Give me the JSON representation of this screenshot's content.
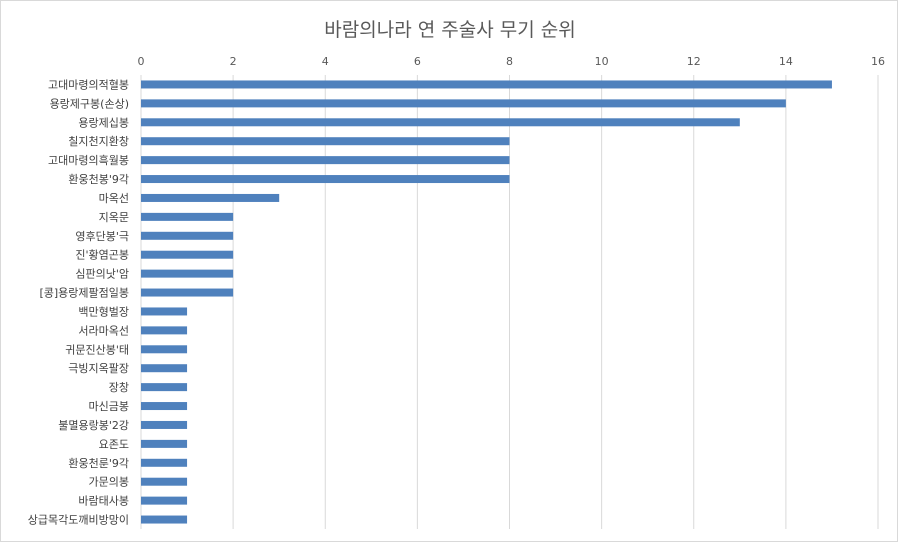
{
  "chart_data": {
    "type": "bar",
    "orientation": "horizontal",
    "title": "바람의나라 연 주술사 무기 순위",
    "xlabel": "",
    "ylabel": "",
    "xlim": [
      0,
      16
    ],
    "x_ticks": [
      "0",
      "2",
      "4",
      "6",
      "8",
      "10",
      "12",
      "14",
      "16"
    ],
    "x_axis_position": "top",
    "grid": true,
    "legend": "none",
    "bar_color": "#4f81bd",
    "categories": [
      "고대마령의적혈봉",
      "용랑제구봉(손상)",
      "용랑제십봉",
      "칠지천지환창",
      "고대마령의흑월봉",
      "환웅천봉'9각",
      "마옥선",
      "지옥문",
      "영후단봉'극",
      "진'황염곤봉",
      "심판의낫'암",
      "[콩]용랑제팔점일봉",
      "백만형벌장",
      "서라마옥선",
      "귀문진산봉'태",
      "극빙지옥팔장",
      "장창",
      "마신금봉",
      "불멸용랑봉'2강",
      "요존도",
      "환웅천룬'9각",
      "가문의봉",
      "바람태사봉",
      "상급목각도깨비방망이"
    ],
    "values": [
      15,
      14,
      13,
      8,
      8,
      8,
      3,
      2,
      2,
      2,
      2,
      2,
      1,
      1,
      1,
      1,
      1,
      1,
      1,
      1,
      1,
      1,
      1,
      1
    ]
  }
}
